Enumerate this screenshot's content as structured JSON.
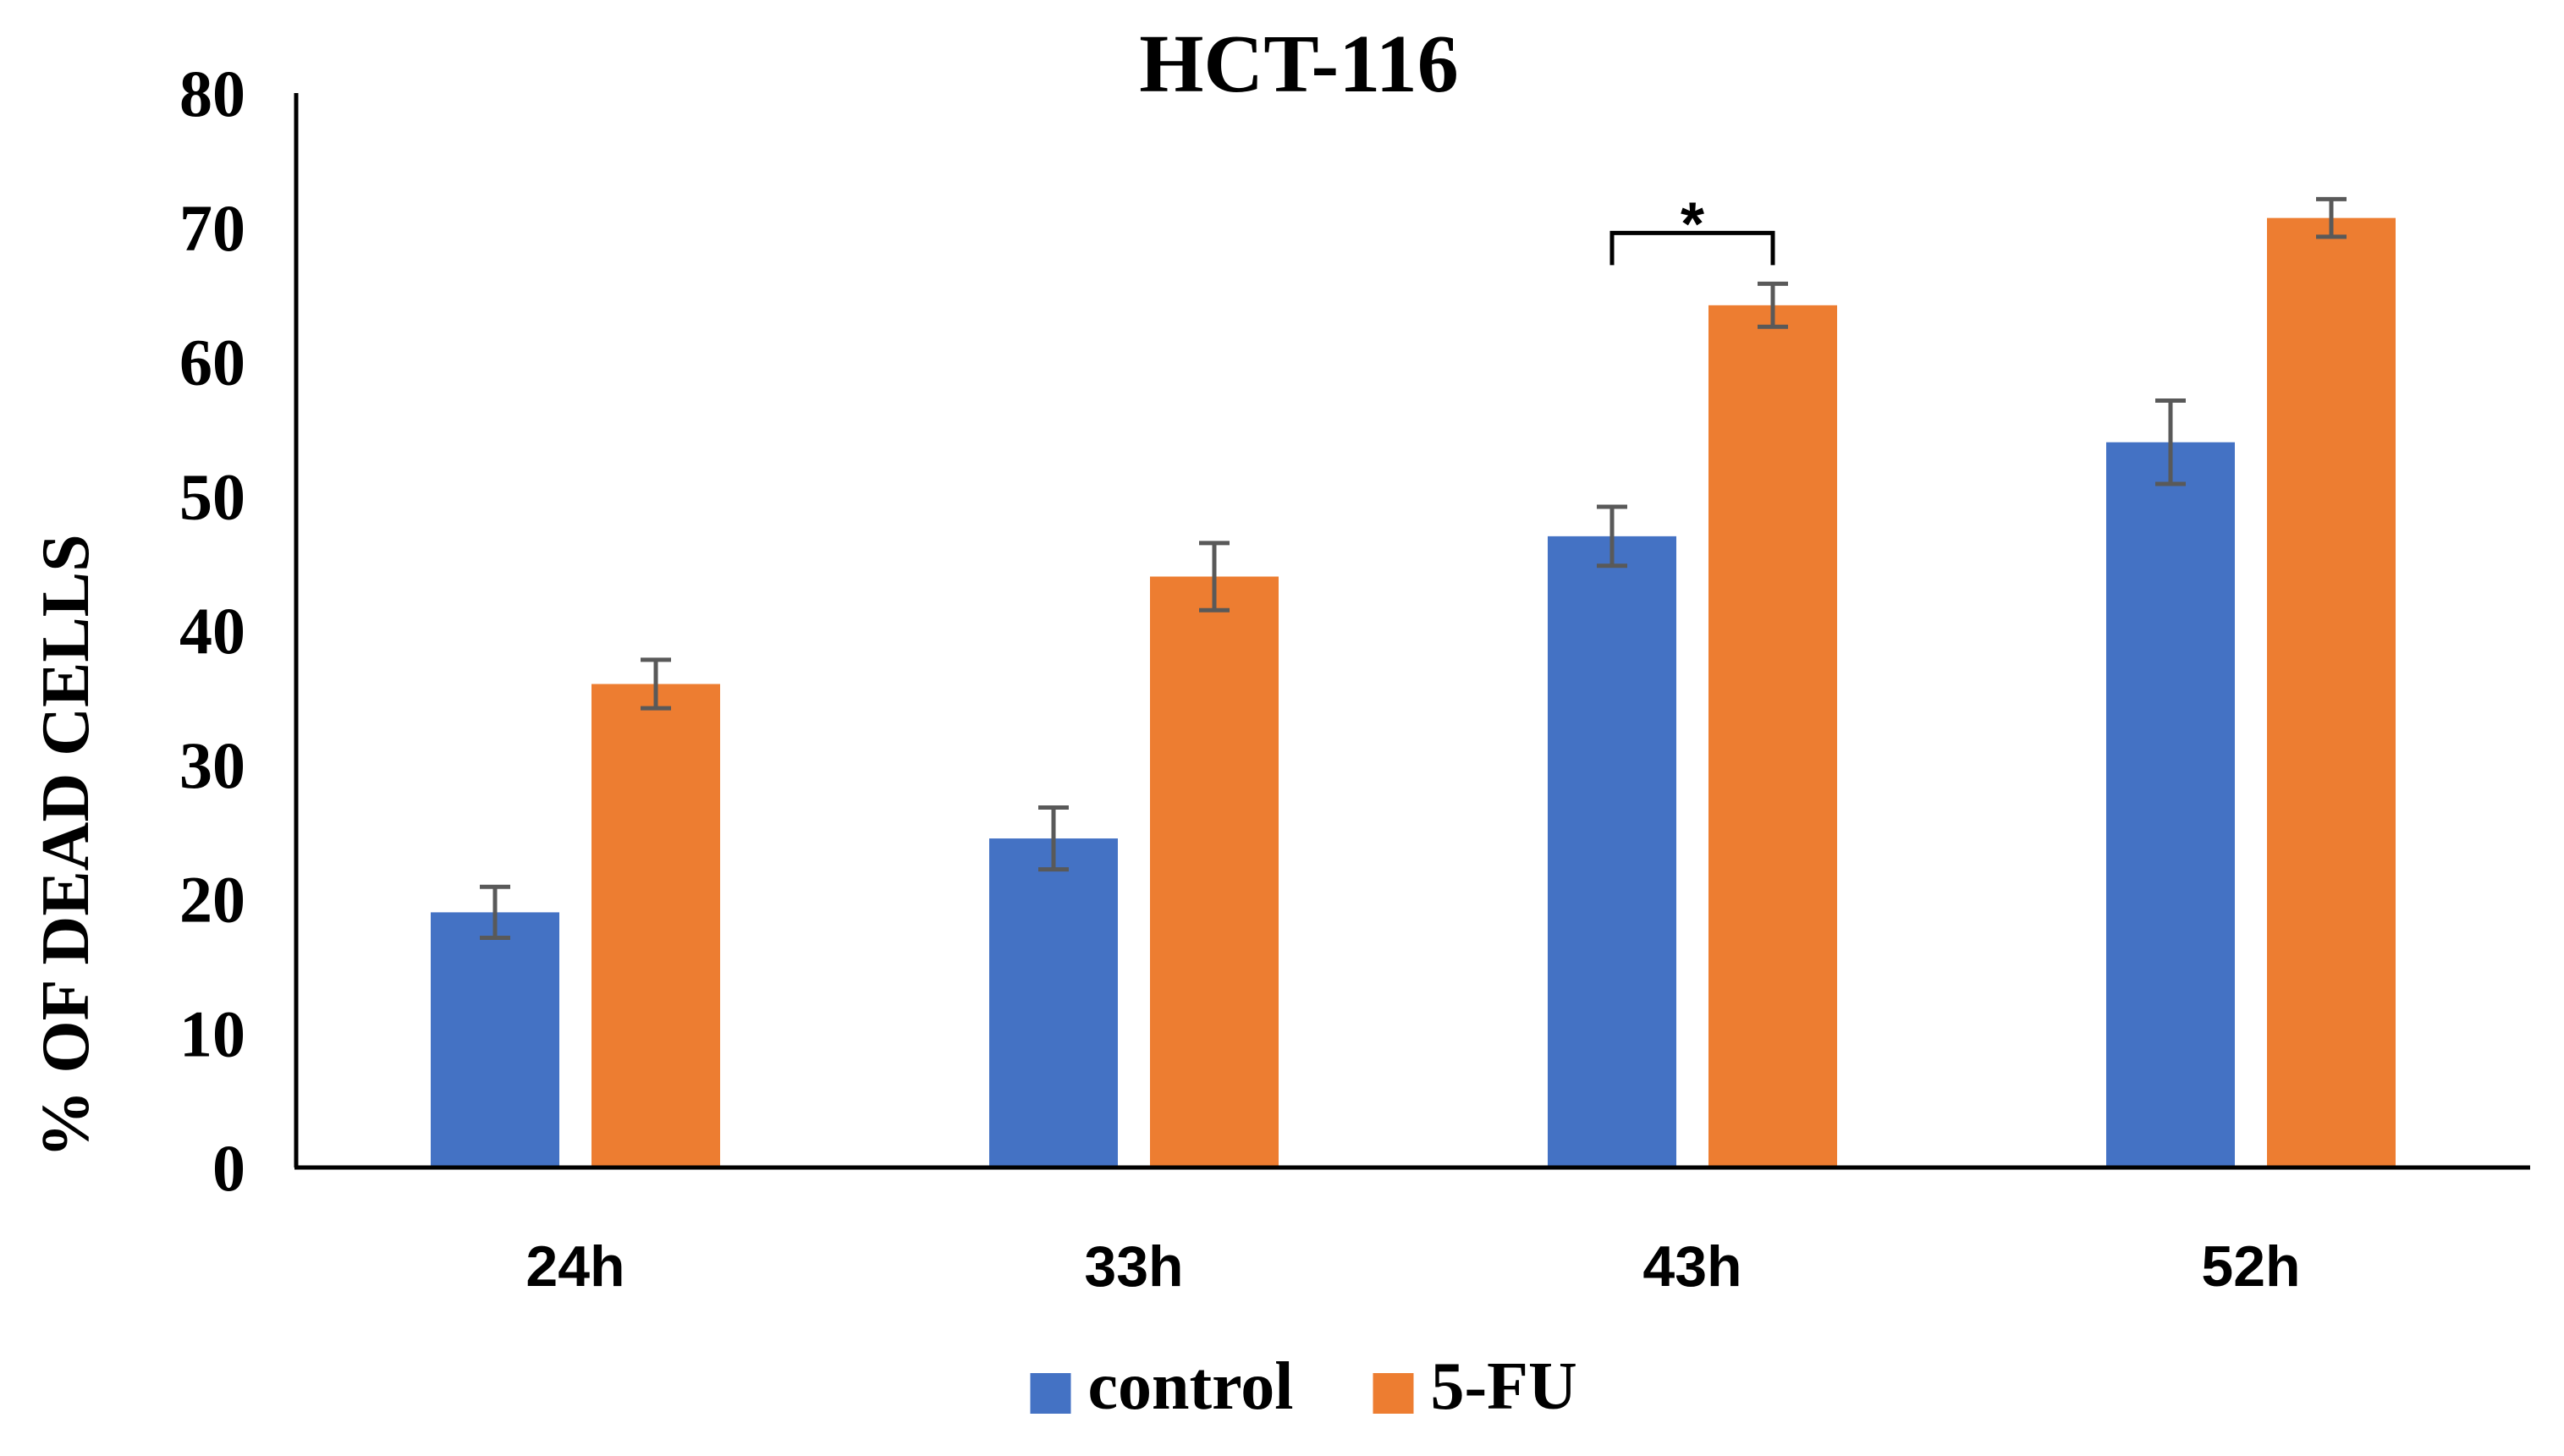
{
  "chart_data": {
    "type": "bar",
    "title": "HCT-116",
    "xlabel": "",
    "ylabel": "% OF DEAD CELLS",
    "categories": [
      "24h",
      "33h",
      "43h",
      "52h"
    ],
    "ylim": [
      0,
      80
    ],
    "yticks": [
      0,
      10,
      20,
      30,
      40,
      50,
      60,
      70,
      80
    ],
    "ytick_labels": [
      "0",
      "10",
      "20",
      "30",
      "40",
      "50",
      "60",
      "70",
      "80"
    ],
    "grid": false,
    "legend_position": "bottom",
    "series": [
      {
        "name": "control",
        "color": "#4472C4",
        "values": [
          19,
          24.5,
          47,
          54
        ],
        "errors": [
          1.9,
          2.3,
          2.2,
          3.1
        ]
      },
      {
        "name": "5-FU",
        "color": "#ED7D31",
        "values": [
          36,
          44,
          64.2,
          70.7
        ],
        "errors": [
          1.8,
          2.5,
          1.6,
          1.4
        ]
      }
    ],
    "annotations": [
      {
        "text": "*",
        "category": "43h",
        "type": "significance-bracket"
      }
    ],
    "error_bar_color": "#595959"
  }
}
